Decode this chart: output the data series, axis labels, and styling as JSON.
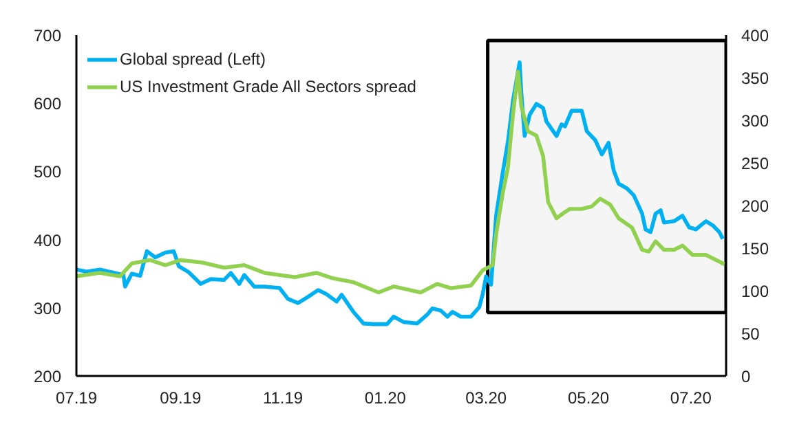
{
  "chart_data": {
    "type": "line",
    "xlim": [
      "2019-07-01",
      "2020-07-22"
    ],
    "xticks": [
      {
        "value": "2019-07-01",
        "label": "07.19"
      },
      {
        "value": "2019-09-01",
        "label": "09.19"
      },
      {
        "value": "2019-11-01",
        "label": "11.19"
      },
      {
        "value": "2020-01-01",
        "label": "01.20"
      },
      {
        "value": "2020-03-01",
        "label": "03.20"
      },
      {
        "value": "2020-05-01",
        "label": "05.20"
      },
      {
        "value": "2020-07-01",
        "label": "07.20"
      }
    ],
    "ylim": [
      200,
      700
    ],
    "yticks": [
      200,
      300,
      400,
      500,
      600,
      700
    ],
    "y2lim": [
      0,
      400
    ],
    "y2ticks": [
      0,
      50,
      100,
      150,
      200,
      250,
      300,
      350,
      400
    ],
    "grid": false,
    "legend": "top left",
    "line_style": "solid",
    "marker": "none",
    "bands": [
      {
        "axis": "x",
        "from": "2020-03-02",
        "to": "2020-07-22",
        "color": "#000000"
      }
    ],
    "series": [
      {
        "name": "Global spread (Left)",
        "color": "#00b0f0",
        "x": [
          "2019-07-01",
          "2019-07-07",
          "2019-07-15",
          "2019-07-24",
          "2019-07-29",
          "2019-07-30",
          "2019-08-03",
          "2019-08-08",
          "2019-08-12",
          "2019-08-17",
          "2019-08-23",
          "2019-08-28",
          "2019-08-31",
          "2019-09-06",
          "2019-09-13",
          "2019-09-19",
          "2019-09-27",
          "2019-10-01",
          "2019-10-06",
          "2019-10-09",
          "2019-10-15",
          "2019-10-21",
          "2019-10-30",
          "2019-11-04",
          "2019-11-10",
          "2019-11-16",
          "2019-11-22",
          "2019-11-27",
          "2019-12-03",
          "2019-12-06",
          "2019-12-13",
          "2019-12-19",
          "2019-12-25",
          "2020-01-02",
          "2020-01-06",
          "2020-01-12",
          "2020-01-20",
          "2020-01-26",
          "2020-01-29",
          "2020-02-03",
          "2020-02-07",
          "2020-02-10",
          "2020-02-15",
          "2020-02-21",
          "2020-02-26",
          "2020-02-28",
          "2020-03-01",
          "2020-03-04",
          "2020-03-07",
          "2020-03-11",
          "2020-03-14",
          "2020-03-17",
          "2020-03-21",
          "2020-03-22",
          "2020-03-24",
          "2020-03-27",
          "2020-03-31",
          "2020-04-04",
          "2020-04-06",
          "2020-04-12",
          "2020-04-15",
          "2020-04-17",
          "2020-04-21",
          "2020-04-27",
          "2020-04-30",
          "2020-05-05",
          "2020-05-09",
          "2020-05-13",
          "2020-05-16",
          "2020-05-19",
          "2020-05-24",
          "2020-05-28",
          "2020-06-02",
          "2020-06-04",
          "2020-06-07",
          "2020-06-10",
          "2020-06-13",
          "2020-06-15",
          "2020-06-21",
          "2020-06-26",
          "2020-06-30",
          "2020-07-04",
          "2020-07-10",
          "2020-07-14",
          "2020-07-18",
          "2020-07-20"
        ],
        "values": [
          356,
          353,
          356,
          351,
          348,
          331,
          350,
          347,
          383,
          374,
          381,
          383,
          361,
          352,
          335,
          342,
          341,
          351,
          335,
          348,
          331,
          331,
          329,
          313,
          307,
          316,
          326,
          320,
          309,
          319,
          294,
          277,
          276,
          276,
          287,
          279,
          277,
          290,
          299,
          296,
          287,
          294,
          287,
          287,
          301,
          320,
          346,
          334,
          435,
          499,
          543,
          603,
          660,
          616,
          552,
          583,
          599,
          593,
          573,
          552,
          569,
          566,
          589,
          589,
          559,
          546,
          525,
          542,
          502,
          482,
          475,
          465,
          438,
          415,
          411,
          438,
          443,
          425,
          427,
          435,
          418,
          415,
          427,
          421,
          411,
          401
        ]
      },
      {
        "name": "US Investment Grade All Sectors spread",
        "color": "#92d050",
        "axis": "y2",
        "x": [
          "2019-07-01",
          "2019-07-15",
          "2019-07-27",
          "2019-08-03",
          "2019-08-14",
          "2019-08-23",
          "2019-09-01",
          "2019-09-14",
          "2019-09-27",
          "2019-10-09",
          "2019-10-21",
          "2019-11-08",
          "2019-11-21",
          "2019-11-30",
          "2019-12-13",
          "2019-12-28",
          "2020-01-06",
          "2020-01-22",
          "2020-02-01",
          "2020-02-09",
          "2020-02-21",
          "2020-02-28",
          "2020-03-05",
          "2020-03-07",
          "2020-03-11",
          "2020-03-14",
          "2020-03-17",
          "2020-03-20",
          "2020-03-22",
          "2020-03-26",
          "2020-03-31",
          "2020-04-04",
          "2020-04-07",
          "2020-04-12",
          "2020-04-16",
          "2020-04-20",
          "2020-04-27",
          "2020-05-03",
          "2020-05-08",
          "2020-05-14",
          "2020-05-19",
          "2020-05-27",
          "2020-06-02",
          "2020-06-06",
          "2020-06-10",
          "2020-06-15",
          "2020-06-21",
          "2020-06-26",
          "2020-07-02",
          "2020-07-10",
          "2020-07-15",
          "2020-07-21"
        ],
        "values": [
          117,
          121,
          117,
          132,
          136,
          130,
          136,
          133,
          127,
          130,
          121,
          116,
          121,
          115,
          110,
          98,
          105,
          98,
          108,
          103,
          106,
          124,
          130,
          166,
          215,
          244,
          306,
          357,
          317,
          287,
          282,
          258,
          204,
          185,
          191,
          196,
          196,
          199,
          208,
          201,
          185,
          174,
          148,
          146,
          158,
          148,
          148,
          153,
          142,
          142,
          137,
          131
        ]
      }
    ]
  }
}
